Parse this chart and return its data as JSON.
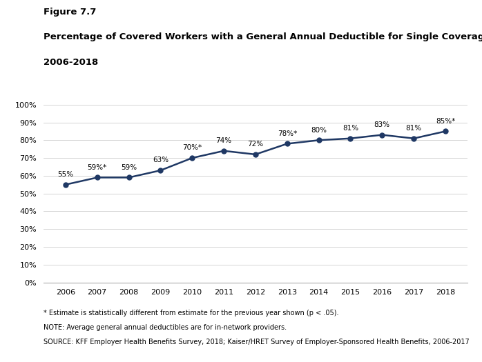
{
  "years": [
    2006,
    2007,
    2008,
    2009,
    2010,
    2011,
    2012,
    2013,
    2014,
    2015,
    2016,
    2017,
    2018
  ],
  "values": [
    55,
    59,
    59,
    63,
    70,
    74,
    72,
    78,
    80,
    81,
    83,
    81,
    85
  ],
  "labels": [
    "55%",
    "59%*",
    "59%",
    "63%",
    "70%*",
    "74%",
    "72%",
    "78%*",
    "80%",
    "81%",
    "83%",
    "81%",
    "85%*"
  ],
  "line_color": "#1f3864",
  "marker_size": 5,
  "line_width": 1.8,
  "figure_title": "Figure 7.7",
  "chart_title_line1": "Percentage of Covered Workers with a General Annual Deductible for Single Coverage,",
  "chart_title_line2": "2006-2018",
  "ylim": [
    0,
    110
  ],
  "yticks": [
    0,
    10,
    20,
    30,
    40,
    50,
    60,
    70,
    80,
    90,
    100
  ],
  "ytick_labels": [
    "0%",
    "10%",
    "20%",
    "30%",
    "40%",
    "50%",
    "60%",
    "70%",
    "80%",
    "90%",
    "100%"
  ],
  "background_color": "#ffffff",
  "footnote1": "* Estimate is statistically different from estimate for the previous year shown (p < .05).",
  "footnote2": "NOTE: Average general annual deductibles are for in-network providers.",
  "footnote3": "SOURCE: KFF Employer Health Benefits Survey, 2018; Kaiser/HRET Survey of Employer-Sponsored Health Benefits, 2006-2017"
}
